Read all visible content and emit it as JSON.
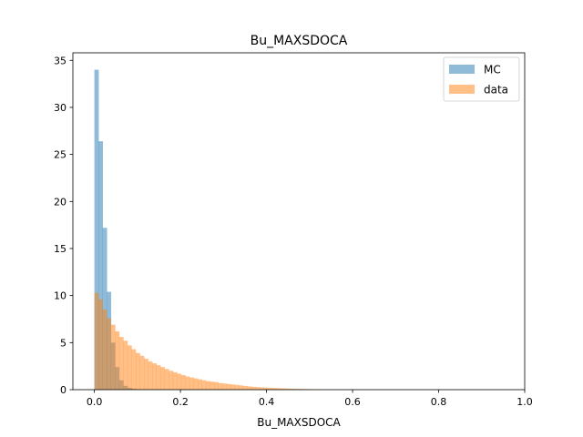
{
  "chart_data": {
    "type": "histogram",
    "title": "Bu_MAXSDOCA",
    "xlabel": "Bu_MAXSDOCA",
    "ylabel": "",
    "xlim": [
      -0.05,
      1.0
    ],
    "ylim": [
      0,
      35.8
    ],
    "xticks": [
      0.0,
      0.2,
      0.4,
      0.6,
      0.8,
      1.0
    ],
    "xtick_labels": [
      "0.0",
      "0.2",
      "0.4",
      "0.6",
      "0.8",
      "1.0"
    ],
    "yticks": [
      0,
      5,
      10,
      15,
      20,
      25,
      30,
      35
    ],
    "ytick_labels": [
      "0",
      "5",
      "10",
      "15",
      "20",
      "25",
      "30",
      "35"
    ],
    "grid": false,
    "legend_position": "top-right",
    "bin_start": 0.0,
    "bin_width": 0.0096,
    "series": [
      {
        "name": "MC",
        "color": "#1f77b4",
        "alpha": 0.5,
        "values": [
          34.0,
          26.4,
          17.2,
          10.4,
          5.0,
          2.4,
          1.0,
          0.4,
          0.2,
          0.1,
          0.05,
          0.03
        ]
      },
      {
        "name": "data",
        "color": "#ff7f0e",
        "alpha": 0.5,
        "values": [
          10.3,
          9.6,
          8.5,
          7.6,
          6.9,
          6.2,
          5.6,
          5.2,
          4.7,
          4.3,
          3.9,
          3.6,
          3.3,
          3.0,
          2.8,
          2.6,
          2.4,
          2.2,
          2.0,
          1.85,
          1.7,
          1.55,
          1.4,
          1.3,
          1.2,
          1.1,
          1.0,
          0.9,
          0.85,
          0.8,
          0.7,
          0.65,
          0.6,
          0.55,
          0.5,
          0.45,
          0.4,
          0.35,
          0.3,
          0.28,
          0.25,
          0.22,
          0.2,
          0.18,
          0.16,
          0.14,
          0.12,
          0.1,
          0.09,
          0.08,
          0.07,
          0.06,
          0.05,
          0.04
        ]
      }
    ]
  }
}
